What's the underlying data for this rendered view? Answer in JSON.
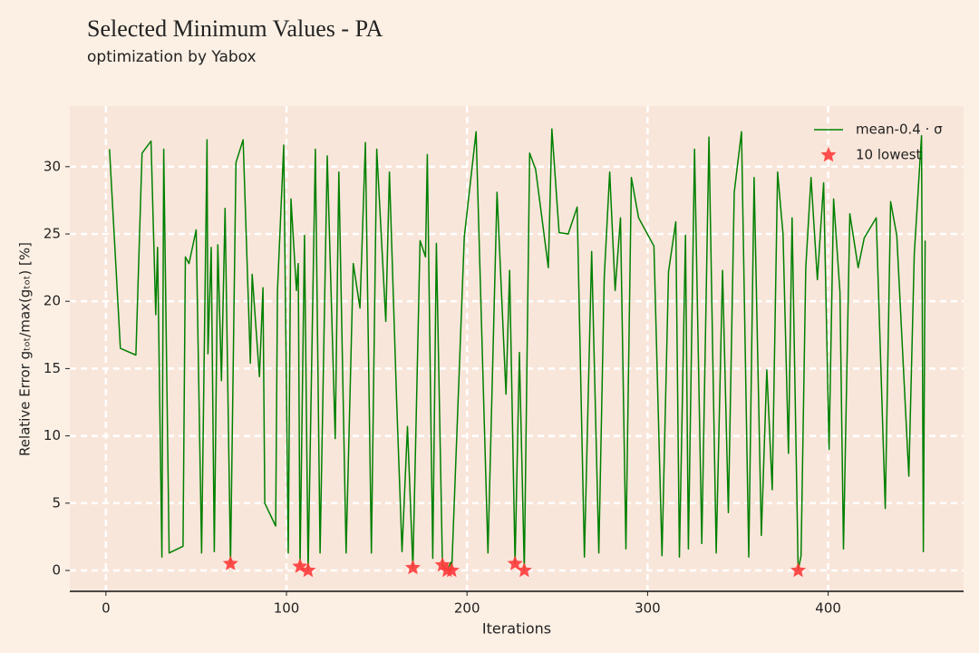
{
  "chart_data": {
    "type": "line",
    "title": "Selected Minimum Values - PA",
    "subtitle": "optimization by Yabox",
    "x_label": "Iterations",
    "y_label": "Relative Error gₜₒₜ/max(gₜₒₜ) [%]",
    "xlim": [
      -20,
      475
    ],
    "ylim": [
      -1.55,
      34.5
    ],
    "xticks": [
      0,
      100,
      200,
      300,
      400
    ],
    "yticks": [
      0,
      5,
      10,
      15,
      20,
      25,
      30
    ],
    "grid": true,
    "legend": "upper right",
    "series": [
      {
        "name": "mean-0.4 · σ",
        "color": "#008000",
        "marker": "line",
        "x": [
          2,
          8,
          16.6,
          20,
          25,
          27.6,
          28.6,
          31,
          32,
          35,
          42.7,
          44,
          46,
          50,
          53,
          56,
          56.5,
          58.3,
          60,
          62,
          64,
          66,
          69,
          72,
          76,
          80,
          81,
          85,
          87,
          88,
          94,
          95,
          98.5,
          101,
          102.5,
          105.5,
          106.5,
          107.5,
          110,
          112,
          116,
          118.6,
          122.6,
          127,
          129,
          133,
          137,
          140.7,
          143.7,
          147,
          150,
          155,
          157,
          161,
          164,
          167,
          170,
          174,
          177,
          178,
          181,
          183,
          186.4,
          189,
          191,
          191.5,
          198.5,
          205,
          211.6,
          216.6,
          221.6,
          223.6,
          226.6,
          229,
          231.7,
          234.7,
          238,
          245,
          247,
          251,
          256,
          261,
          265,
          269,
          273,
          276,
          279,
          282,
          285,
          288,
          291,
          295,
          303.5,
          308,
          311.6,
          315.6,
          317.6,
          321,
          322.6,
          326,
          330,
          334,
          338,
          341.5,
          344.7,
          348,
          352,
          356,
          359,
          363,
          366,
          369,
          372,
          375,
          378,
          380,
          383.4,
          385,
          387.6,
          390.5,
          394,
          397.5,
          400.5,
          403,
          406.5,
          408.5,
          412,
          416.6,
          420,
          426.6,
          431.6,
          434.6,
          438,
          444.7,
          447.7,
          451.7,
          452.7,
          453.7
        ],
        "values": [
          31.3,
          16.5,
          16,
          31,
          31.9,
          19,
          24,
          1,
          31.3,
          1.3,
          1.8,
          23.3,
          22.8,
          25.3,
          1.3,
          32,
          16.1,
          24,
          1.4,
          24.2,
          14.1,
          26.9,
          0.5,
          30.3,
          32,
          15.4,
          22,
          14.4,
          21,
          5,
          3.3,
          20.8,
          31.6,
          1.3,
          27.6,
          20.8,
          22.8,
          0.3,
          24.9,
          0,
          31.3,
          1.3,
          30.8,
          9.8,
          29.6,
          1.3,
          22.8,
          19.5,
          31.8,
          1.3,
          31.3,
          18.5,
          29.6,
          12.7,
          1.4,
          10.7,
          0.2,
          24.5,
          23.3,
          30.9,
          0.9,
          24.3,
          0.4,
          0,
          0.6,
          0,
          24.8,
          32.6,
          1.3,
          28.1,
          13.1,
          22.3,
          0.5,
          16.2,
          0,
          31,
          29.8,
          22.5,
          32.8,
          25.1,
          25,
          27,
          1,
          23.7,
          1.3,
          21.8,
          29.6,
          20.8,
          26.2,
          1.6,
          29.2,
          26.2,
          24.1,
          1.1,
          22.2,
          25.9,
          1,
          24.9,
          1.6,
          31.3,
          2,
          32.2,
          1.3,
          22.3,
          4.3,
          28.1,
          32.6,
          1,
          29.2,
          2.6,
          14.9,
          6,
          29.6,
          25,
          8.7,
          26.2,
          0,
          1.1,
          22.5,
          29.2,
          21.6,
          28.8,
          9,
          27.6,
          20.7,
          1.6,
          26.5,
          22.5,
          24.7,
          26.2,
          4.6,
          27.4,
          24.9,
          7,
          23.5,
          32.3,
          1.4,
          24.5
        ]
      },
      {
        "name": "10 lowest",
        "color": "#ff3b3b",
        "marker": "star",
        "x": [
          69,
          107.5,
          112,
          170,
          186.4,
          189,
          191.5,
          226.6,
          231.7,
          383.4
        ],
        "values": [
          0.5,
          0.3,
          0,
          0.2,
          0.4,
          0,
          0,
          0.5,
          0,
          0
        ]
      }
    ]
  }
}
